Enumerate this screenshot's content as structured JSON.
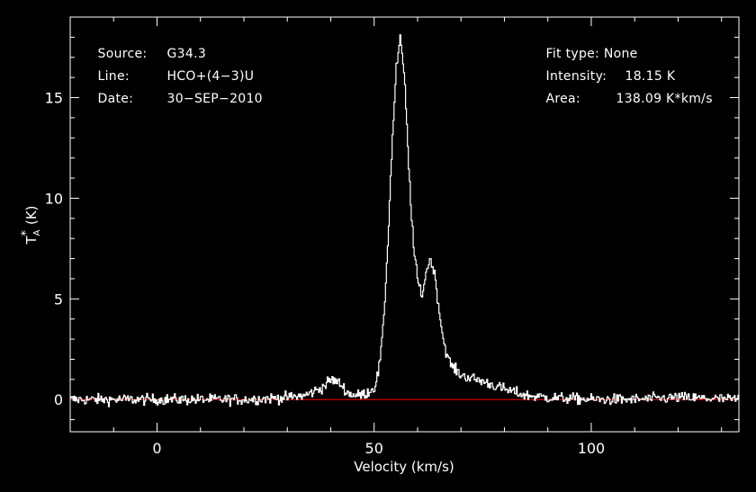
{
  "header": {
    "left": [
      {
        "label": "Source:",
        "value": "G34.3"
      },
      {
        "label": "Line:",
        "value": "HCO+(4−3)U"
      },
      {
        "label": "Date:",
        "value": "30−SEP−2010"
      }
    ],
    "right": [
      {
        "label": "Fit type:",
        "value": "None"
      },
      {
        "label": "Intensity:",
        "value": "18.15 K"
      },
      {
        "label": "Area:",
        "value": "138.09 K*km/s"
      }
    ]
  },
  "chart_data": {
    "type": "line",
    "xlabel": "Velocity (km/s)",
    "ylabel_main": "T",
    "ylabel_sup": "*",
    "ylabel_sub": "A",
    "ylabel_unit": "(K)",
    "xlim": [
      -20,
      134
    ],
    "ylim": [
      -1.6,
      19.0
    ],
    "xticks": [
      0,
      50,
      100
    ],
    "yticks": [
      0,
      5,
      10,
      15
    ],
    "baseline": 0,
    "colors": {
      "spectrum": "#ffffff",
      "baseline": "#ff0000",
      "frame": "#ffffff",
      "background": "#000000"
    },
    "series": [
      {
        "x": [
          -20,
          -10,
          0,
          10,
          20,
          30,
          34,
          38,
          40,
          42,
          44,
          46,
          48,
          50,
          51,
          52,
          53,
          54,
          55,
          56,
          57,
          58,
          59,
          60,
          61,
          62,
          63,
          64,
          65,
          66,
          67,
          68,
          70,
          75,
          80,
          85,
          90,
          100,
          110,
          120,
          134
        ],
        "y": [
          0,
          0,
          0,
          0,
          0,
          0.1,
          0.2,
          0.6,
          1.0,
          0.8,
          0.3,
          0.2,
          0.3,
          0.6,
          1.5,
          3.5,
          7.5,
          12.5,
          16.5,
          18.0,
          15.5,
          11.0,
          7.5,
          5.8,
          5.2,
          6.5,
          7.0,
          6.0,
          4.2,
          2.8,
          2.0,
          1.6,
          1.2,
          0.9,
          0.5,
          0.2,
          0.1,
          0,
          0,
          0.1,
          0
        ]
      }
    ]
  }
}
